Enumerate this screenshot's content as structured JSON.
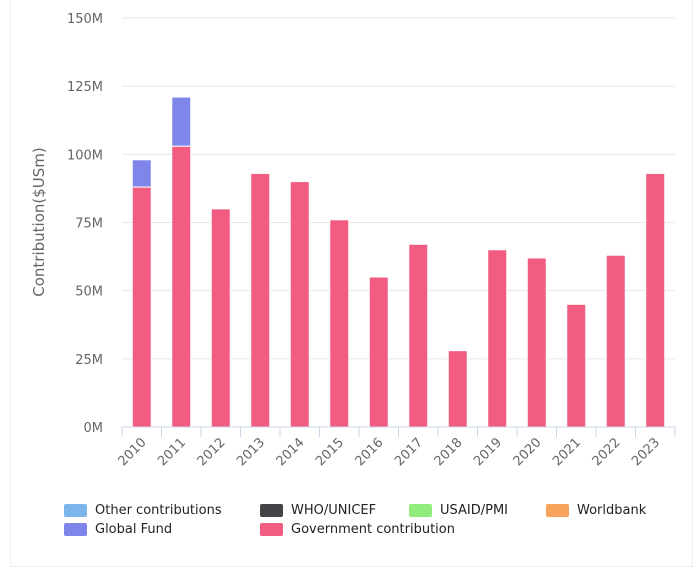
{
  "chart_data": {
    "type": "bar",
    "stacked": true,
    "ylabel": "Contribution($USm)",
    "ylim": [
      0,
      150
    ],
    "yticks": [
      0,
      25,
      50,
      75,
      100,
      125,
      150
    ],
    "ytick_labels": [
      "0M",
      "25M",
      "50M",
      "75M",
      "100M",
      "125M",
      "150M"
    ],
    "grid": true,
    "legend_position": "bottom-left",
    "categories": [
      "2010",
      "2011",
      "2012",
      "2013",
      "2014",
      "2015",
      "2016",
      "2017",
      "2018",
      "2019",
      "2020",
      "2021",
      "2022",
      "2023"
    ],
    "series": [
      {
        "name": "Other contributions",
        "color": "#7cb5ec",
        "values": [
          0,
          0,
          0,
          0,
          0,
          0,
          0,
          0,
          0,
          0,
          0,
          0,
          0,
          0
        ]
      },
      {
        "name": "WHO/UNICEF",
        "color": "#434348",
        "values": [
          0,
          0,
          0,
          0,
          0,
          0,
          0,
          0,
          0,
          0,
          0,
          0,
          0,
          0
        ]
      },
      {
        "name": "USAID/PMI",
        "color": "#90ed7d",
        "values": [
          0,
          0,
          0,
          0,
          0,
          0,
          0,
          0,
          0,
          0,
          0,
          0,
          0,
          0
        ]
      },
      {
        "name": "Worldbank",
        "color": "#f7a35c",
        "values": [
          0,
          0,
          0,
          0,
          0,
          0,
          0,
          0,
          0,
          0,
          0,
          0,
          0,
          0
        ]
      },
      {
        "name": "Global Fund",
        "color": "#8085e9",
        "values": [
          10,
          18,
          0,
          0,
          0,
          0,
          0,
          0,
          0,
          0,
          0,
          0,
          0,
          0
        ]
      },
      {
        "name": "Government contribution",
        "color": "#f15c80",
        "values": [
          88,
          103,
          80,
          93,
          90,
          76,
          55,
          67,
          28,
          65,
          62,
          45,
          63,
          93
        ]
      }
    ],
    "stack_order": [
      "Government contribution",
      "Global Fund",
      "Worldbank",
      "USAID/PMI",
      "WHO/UNICEF",
      "Other contributions"
    ]
  }
}
